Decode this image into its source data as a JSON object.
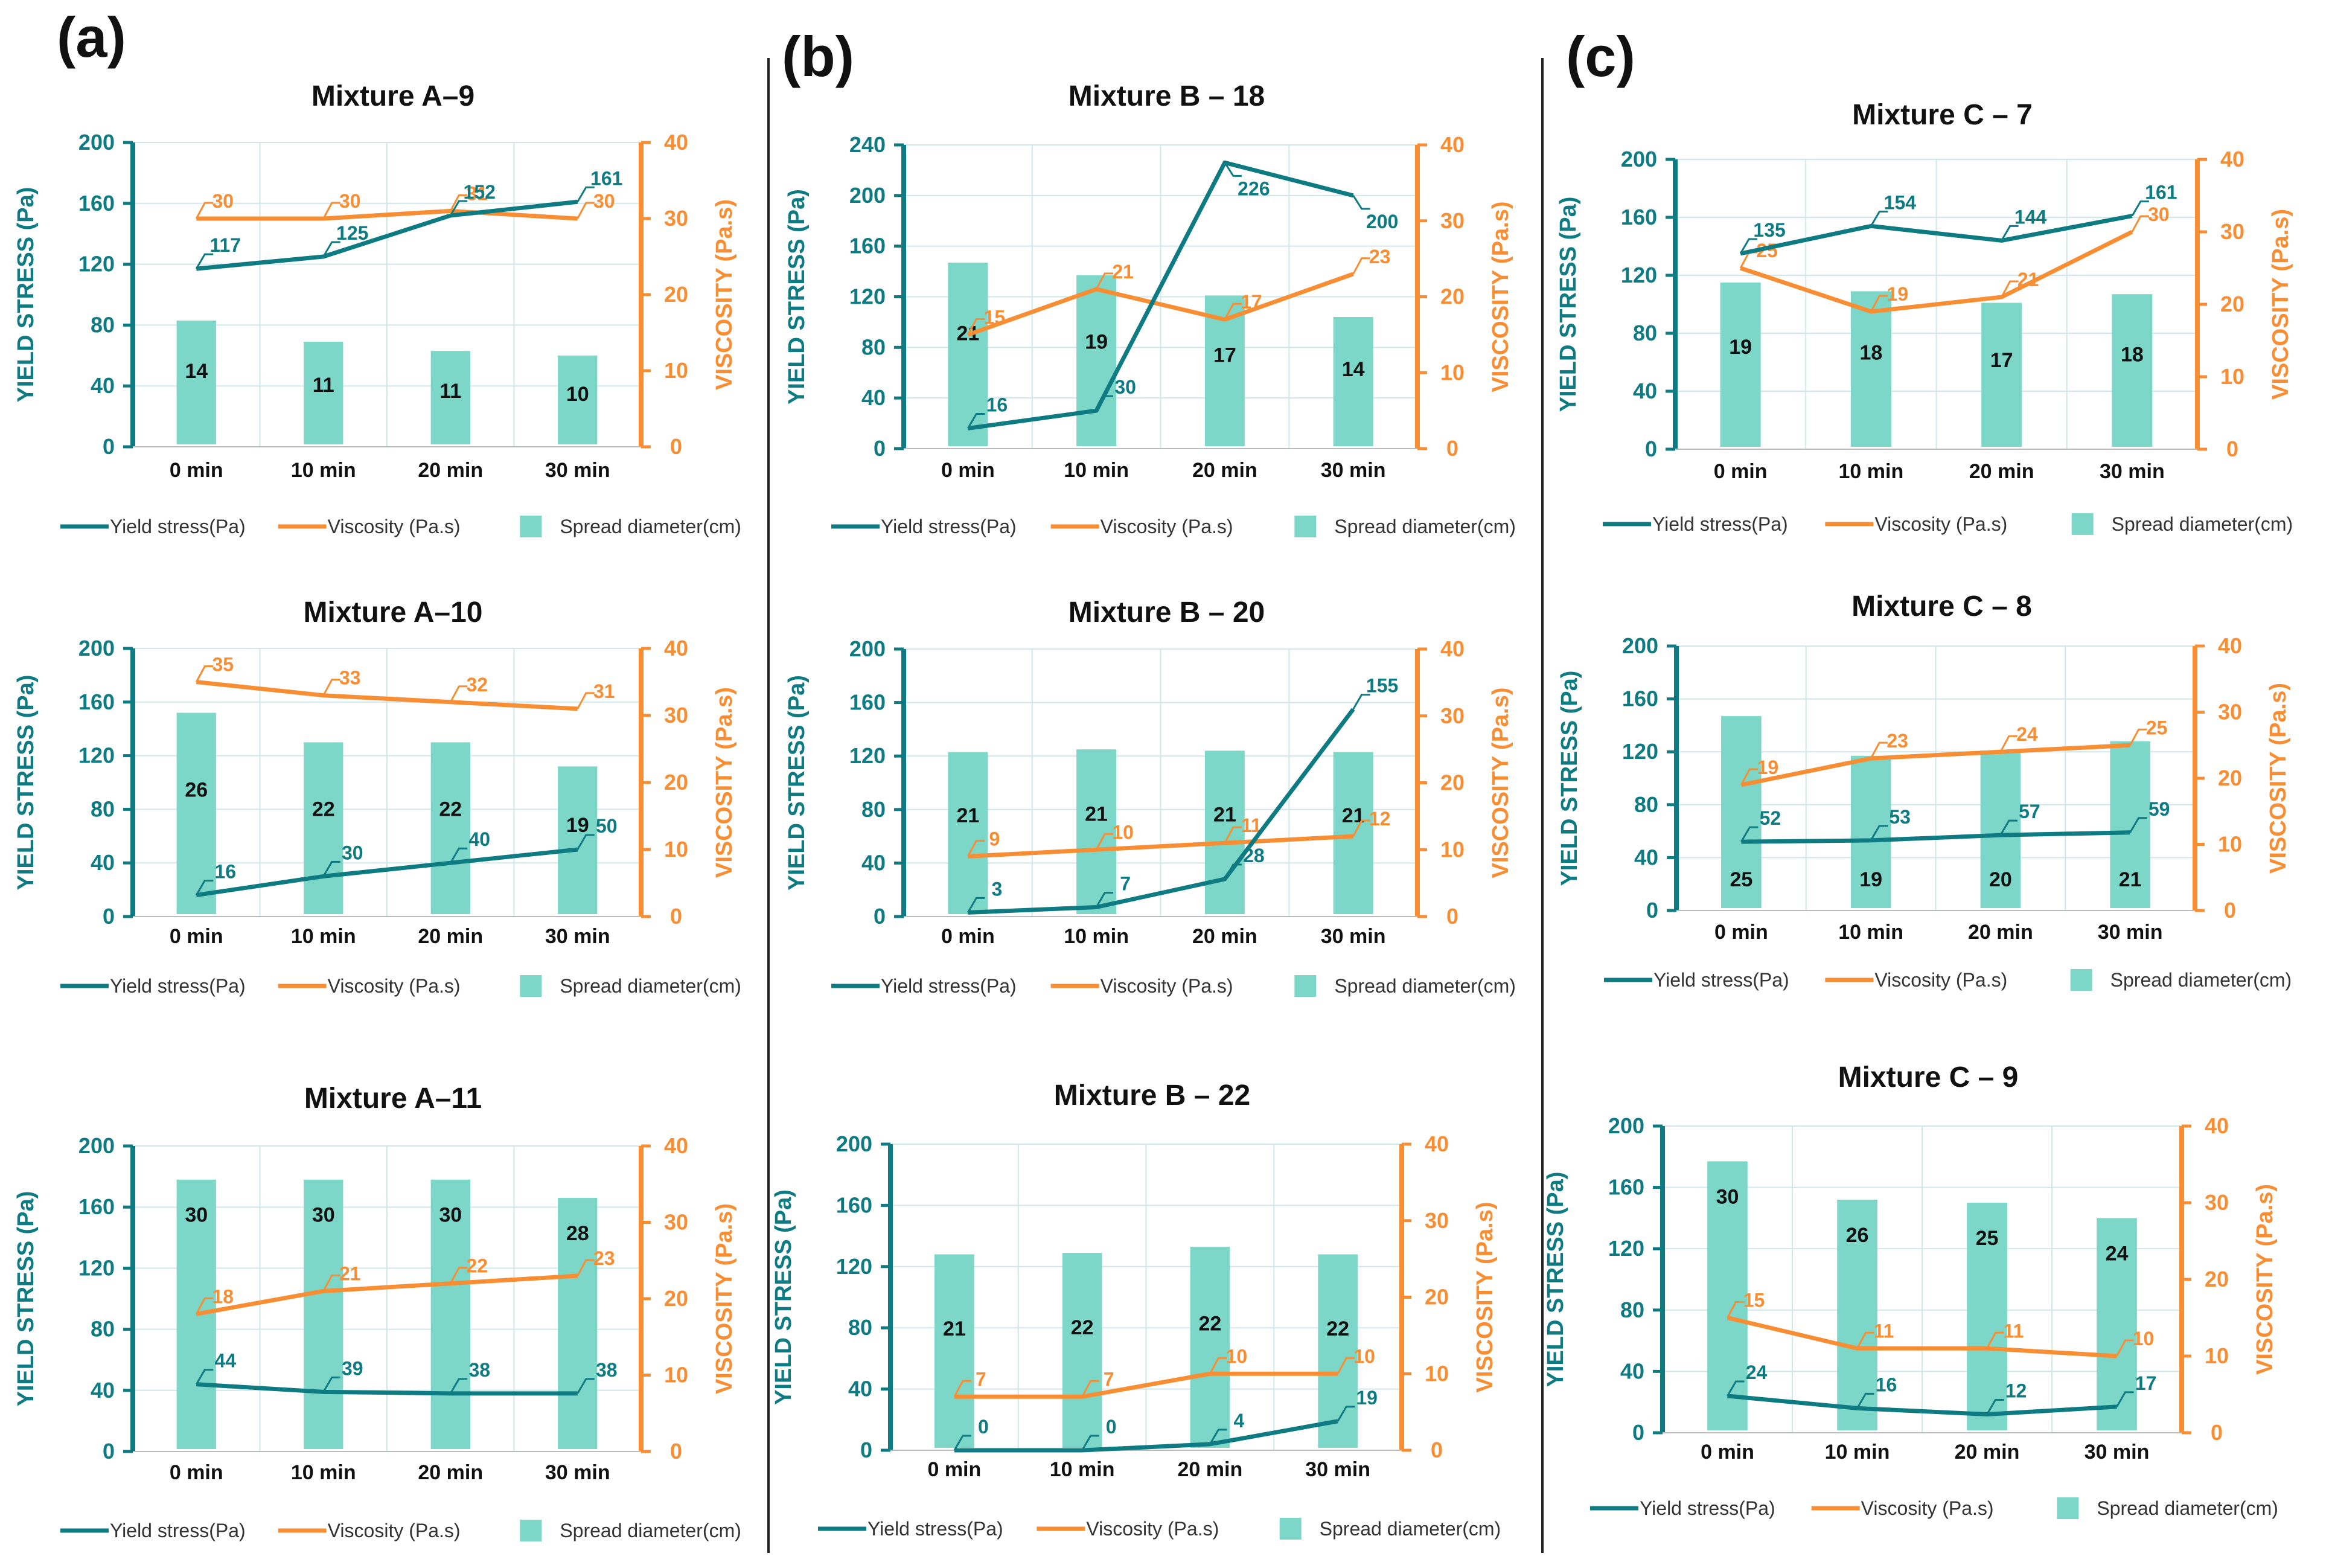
{
  "panel_labels": [
    "(a)",
    "(b)",
    "(c)"
  ],
  "colors": {
    "yield": "#0e7a82",
    "viscosity": "#f78e33",
    "spread": "#7dd7c8",
    "grid": "#cfe7ea",
    "text": "#111111"
  },
  "chart_data": [
    {
      "type": "bar",
      "title": "Mixture A–9",
      "categories": [
        "0 min",
        "10 min",
        "20 min",
        "30 min"
      ],
      "y_left": {
        "label": "YIELD STRESS (Pa)",
        "lim": [
          0,
          200
        ],
        "ticks": [
          "0",
          "40",
          "80",
          "120",
          "160",
          "200"
        ]
      },
      "y_right": {
        "label": "VISCOSITY (Pa.s)",
        "lim": [
          0,
          40
        ],
        "ticks": [
          "0",
          "10",
          "20",
          "30",
          "40"
        ]
      },
      "series": [
        {
          "name": "Yield stress(Pa)",
          "kind": "line",
          "axis": "left",
          "values": [
            117,
            125,
            152,
            161
          ]
        },
        {
          "name": "Viscosity (Pa.s)",
          "kind": "line",
          "axis": "right",
          "values": [
            30,
            30,
            31,
            30
          ]
        },
        {
          "name": "Spread diameter(cm)",
          "kind": "bar",
          "axis": "left",
          "values": [
            14,
            11,
            11,
            10
          ],
          "bar_heights": [
            83,
            69,
            63,
            60
          ]
        }
      ],
      "legend": "bottom"
    },
    {
      "type": "bar",
      "title": "Mixture A–10",
      "categories": [
        "0 min",
        "10 min",
        "20 min",
        "30 min"
      ],
      "y_left": {
        "label": "YIELD STRESS (Pa)",
        "lim": [
          0,
          200
        ],
        "ticks": [
          "0",
          "40",
          "80",
          "120",
          "160",
          "200"
        ]
      },
      "y_right": {
        "label": "VISCOSITY (Pa.s)",
        "lim": [
          0,
          40
        ],
        "ticks": [
          "0",
          "10",
          "20",
          "30",
          "40"
        ]
      },
      "series": [
        {
          "name": "Yield stress(Pa)",
          "kind": "line",
          "axis": "left",
          "values": [
            16,
            30,
            40,
            50
          ]
        },
        {
          "name": "Viscosity (Pa.s)",
          "kind": "line",
          "axis": "right",
          "values": [
            35,
            33,
            32,
            31
          ]
        },
        {
          "name": "Spread diameter(cm)",
          "kind": "bar",
          "axis": "left",
          "values": [
            26,
            22,
            22,
            19
          ],
          "bar_heights": [
            152,
            130,
            130,
            112
          ]
        }
      ],
      "legend": "bottom"
    },
    {
      "type": "bar",
      "title": "Mixture A–11",
      "categories": [
        "0 min",
        "10 min",
        "20 min",
        "30 min"
      ],
      "y_left": {
        "label": "YIELD STRESS (Pa)",
        "lim": [
          0,
          200
        ],
        "ticks": [
          "0",
          "40",
          "80",
          "120",
          "160",
          "200"
        ]
      },
      "y_right": {
        "label": "VISCOSITY (Pa.s)",
        "lim": [
          0,
          40
        ],
        "ticks": [
          "0",
          "10",
          "20",
          "30",
          "40"
        ]
      },
      "series": [
        {
          "name": "Yield stress(Pa)",
          "kind": "line",
          "axis": "left",
          "values": [
            44,
            39,
            38,
            38
          ]
        },
        {
          "name": "Viscosity (Pa.s)",
          "kind": "line",
          "axis": "right",
          "values": [
            18,
            21,
            22,
            23
          ]
        },
        {
          "name": "Spread diameter(cm)",
          "kind": "bar",
          "axis": "left",
          "values": [
            30,
            30,
            30,
            28
          ],
          "bar_heights": [
            178,
            178,
            178,
            166
          ]
        }
      ],
      "legend": "bottom"
    },
    {
      "type": "bar",
      "title": "Mixture B  – 18",
      "categories": [
        "0 min",
        "10 min",
        "20 min",
        "30 min"
      ],
      "y_left": {
        "label": "YIELD STRESS (Pa)",
        "lim": [
          0,
          240
        ],
        "ticks": [
          "0",
          "40",
          "80",
          "120",
          "160",
          "200",
          "240"
        ]
      },
      "y_right": {
        "label": "VISCOSITY (Pa.s)",
        "lim": [
          0,
          40
        ],
        "ticks": [
          "0",
          "10",
          "20",
          "30",
          "40"
        ]
      },
      "series": [
        {
          "name": "Yield stress(Pa)",
          "kind": "line",
          "axis": "left",
          "values": [
            16,
            30,
            226,
            200
          ]
        },
        {
          "name": "Viscosity (Pa.s)",
          "kind": "line",
          "axis": "right",
          "values": [
            15,
            21,
            17,
            23
          ]
        },
        {
          "name": "Spread diameter(cm)",
          "kind": "bar",
          "axis": "left",
          "values": [
            21,
            19,
            17,
            14
          ],
          "bar_heights": [
            147,
            137,
            121,
            104
          ]
        }
      ],
      "legend": "bottom"
    },
    {
      "type": "bar",
      "title": "Mixture B – 20",
      "categories": [
        "0 min",
        "10 min",
        "20 min",
        "30 min"
      ],
      "y_left": {
        "label": "YIELD STRESS (Pa)",
        "lim": [
          0,
          200
        ],
        "ticks": [
          "0",
          "40",
          "80",
          "120",
          "160",
          "200"
        ]
      },
      "y_right": {
        "label": "VISCOSITY (Pa.s)",
        "lim": [
          0,
          40
        ],
        "ticks": [
          "0",
          "10",
          "20",
          "30",
          "40"
        ]
      },
      "series": [
        {
          "name": "Yield stress(Pa)",
          "kind": "line",
          "axis": "left",
          "values": [
            3,
            7,
            28,
            155
          ]
        },
        {
          "name": "Viscosity (Pa.s)",
          "kind": "line",
          "axis": "right",
          "values": [
            9,
            10,
            11,
            12
          ]
        },
        {
          "name": "Spread diameter(cm)",
          "kind": "bar",
          "axis": "left",
          "values": [
            21,
            21,
            21,
            21
          ],
          "bar_heights": [
            123,
            125,
            124,
            123
          ]
        }
      ],
      "legend": "bottom"
    },
    {
      "type": "bar",
      "title": "Mixture B – 22",
      "categories": [
        "0 min",
        "10 min",
        "20 min",
        "30 min"
      ],
      "y_left": {
        "label": "YIELD STRESS (Pa)",
        "lim": [
          0,
          200
        ],
        "ticks": [
          "0",
          "40",
          "80",
          "120",
          "160",
          "200"
        ]
      },
      "y_right": {
        "label": "VISCOSITY (Pa.s)",
        "lim": [
          0,
          40
        ],
        "ticks": [
          "0",
          "10",
          "20",
          "30",
          "40"
        ]
      },
      "series": [
        {
          "name": "Yield stress(Pa)",
          "kind": "line",
          "axis": "left",
          "values": [
            0,
            0,
            4,
            19
          ]
        },
        {
          "name": "Viscosity (Pa.s)",
          "kind": "line",
          "axis": "right",
          "values": [
            7,
            7,
            10,
            10
          ]
        },
        {
          "name": "Spread diameter(cm)",
          "kind": "bar",
          "axis": "left",
          "values": [
            21,
            22,
            22,
            22
          ],
          "bar_heights": [
            128,
            129,
            133,
            128
          ]
        }
      ],
      "legend": "bottom"
    },
    {
      "type": "bar",
      "title": "Mixture C – 7",
      "categories": [
        "0 min",
        "10 min",
        "20 min",
        "30 min"
      ],
      "y_left": {
        "label": "YIELD STRESS (Pa)",
        "lim": [
          0,
          200
        ],
        "ticks": [
          "0",
          "40",
          "80",
          "120",
          "160",
          "200"
        ]
      },
      "y_right": {
        "label": "VISCOSITY (Pa.s)",
        "lim": [
          0,
          40
        ],
        "ticks": [
          "0",
          "10",
          "20",
          "30",
          "40"
        ]
      },
      "series": [
        {
          "name": "Yield stress(Pa)",
          "kind": "line",
          "axis": "left",
          "values": [
            135,
            154,
            144,
            161
          ]
        },
        {
          "name": "Viscosity (Pa.s)",
          "kind": "line",
          "axis": "right",
          "values": [
            25,
            19,
            21,
            30
          ]
        },
        {
          "name": "Spread diameter(cm)",
          "kind": "bar",
          "axis": "left",
          "values": [
            19,
            18,
            17,
            18
          ],
          "bar_heights": [
            115,
            109,
            101,
            107
          ]
        }
      ],
      "legend": "bottom"
    },
    {
      "type": "bar",
      "title": "Mixture C – 8",
      "categories": [
        "0 min",
        "10 min",
        "20 min",
        "30 min"
      ],
      "y_left": {
        "label": "YIELD STRESS (Pa)",
        "lim": [
          0,
          200
        ],
        "ticks": [
          "0",
          "40",
          "80",
          "120",
          "160",
          "200"
        ]
      },
      "y_right": {
        "label": "VISCOSITY (Pa.s)",
        "lim": [
          0,
          40
        ],
        "ticks": [
          "0",
          "10",
          "20",
          "30",
          "40"
        ]
      },
      "series": [
        {
          "name": "Yield stress(Pa)",
          "kind": "line",
          "axis": "left",
          "values": [
            52,
            53,
            57,
            59
          ]
        },
        {
          "name": "Viscosity (Pa.s)",
          "kind": "line",
          "axis": "right",
          "values": [
            19,
            23,
            24,
            25
          ]
        },
        {
          "name": "Spread diameter(cm)",
          "kind": "bar",
          "axis": "left",
          "values": [
            25,
            19,
            20,
            21
          ],
          "bar_heights": [
            147,
            117,
            121,
            128
          ]
        }
      ],
      "legend": "bottom"
    },
    {
      "type": "bar",
      "title": "Mixture C – 9",
      "categories": [
        "0 min",
        "10 min",
        "20 min",
        "30 min"
      ],
      "y_left": {
        "label": "YIELD STRESS (Pa)",
        "lim": [
          0,
          200
        ],
        "ticks": [
          "0",
          "40",
          "80",
          "120",
          "160",
          "200"
        ]
      },
      "y_right": {
        "label": "VISCOSITY (Pa.s)",
        "lim": [
          0,
          40
        ],
        "ticks": [
          "0",
          "10",
          "20",
          "30",
          "40"
        ]
      },
      "series": [
        {
          "name": "Yield stress(Pa)",
          "kind": "line",
          "axis": "left",
          "values": [
            24,
            16,
            12,
            17
          ]
        },
        {
          "name": "Viscosity (Pa.s)",
          "kind": "line",
          "axis": "right",
          "values": [
            15,
            11,
            11,
            10
          ]
        },
        {
          "name": "Spread diameter(cm)",
          "kind": "bar",
          "axis": "left",
          "values": [
            30,
            26,
            25,
            24
          ],
          "bar_heights": [
            177,
            152,
            150,
            140
          ]
        }
      ],
      "legend": "bottom"
    }
  ]
}
